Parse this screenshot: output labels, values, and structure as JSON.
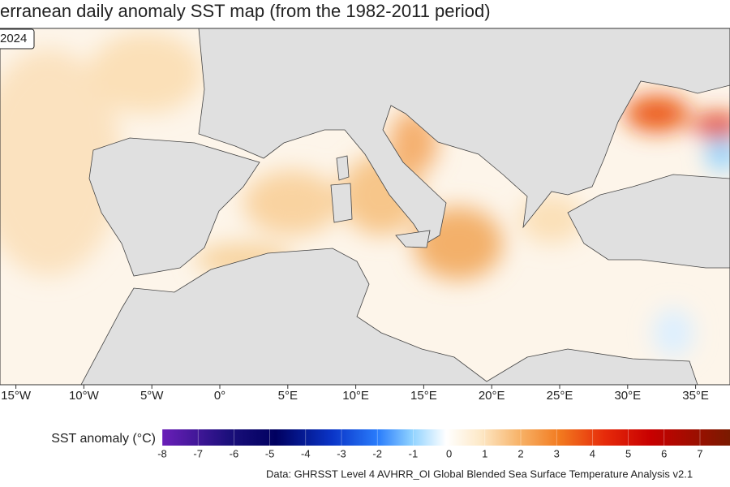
{
  "title": "erranean daily anomaly SST map (from the 1982-2011 period)",
  "date_label": "2024",
  "map": {
    "lon_ticks": [
      {
        "value": -15,
        "label": "15°W"
      },
      {
        "value": -10,
        "label": "10°W"
      },
      {
        "value": -5,
        "label": "5°W"
      },
      {
        "value": 0,
        "label": "0°"
      },
      {
        "value": 5,
        "label": "5°E"
      },
      {
        "value": 10,
        "label": "10°E"
      },
      {
        "value": 15,
        "label": "15°E"
      },
      {
        "value": 20,
        "label": "20°E"
      },
      {
        "value": 25,
        "label": "25°E"
      },
      {
        "value": 30,
        "label": "30°E"
      },
      {
        "value": 35,
        "label": "35°E"
      }
    ]
  },
  "colorbar": {
    "label": "SST anomaly (°C)",
    "ticks": [
      -8,
      -7,
      -6,
      -5,
      -4,
      -3,
      -2,
      -1,
      0,
      1,
      2,
      3,
      4,
      5,
      6,
      7
    ]
  },
  "source": "Data: GHRSST Level 4 AVHRR_OI Global Blended Sea Surface Temperature Analysis v2.1"
}
